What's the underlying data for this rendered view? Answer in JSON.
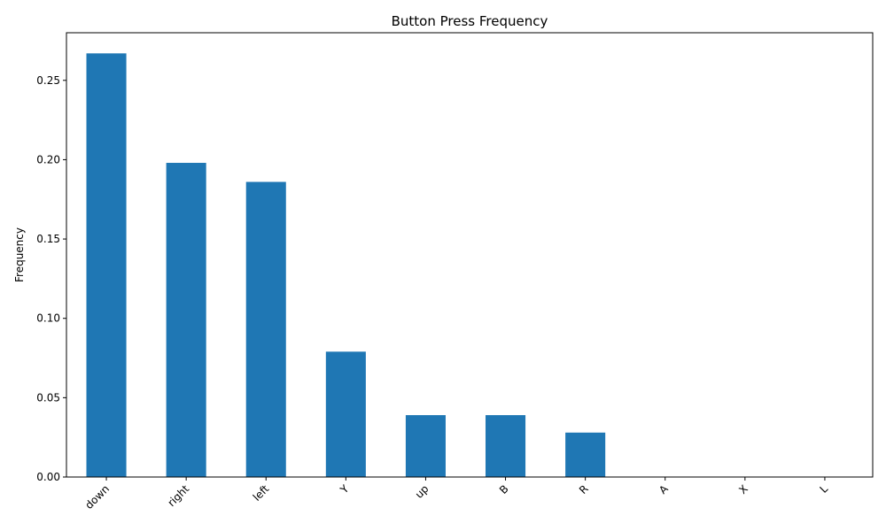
{
  "chart_data": {
    "type": "bar",
    "title": "Button Press Frequency",
    "xlabel": "",
    "ylabel": "Frequency",
    "categories": [
      "down",
      "right",
      "left",
      "Y",
      "up",
      "B",
      "R",
      "A",
      "X",
      "L"
    ],
    "values": [
      0.267,
      0.198,
      0.186,
      0.079,
      0.039,
      0.039,
      0.028,
      0.0,
      0.0,
      0.0
    ],
    "ylim": [
      0,
      0.28
    ],
    "yticks": [
      0.0,
      0.05,
      0.1,
      0.15,
      0.2,
      0.25
    ],
    "ytick_labels": [
      "0.00",
      "0.05",
      "0.10",
      "0.15",
      "0.20",
      "0.25"
    ],
    "grid": false,
    "bar_color": "#1f77b4",
    "x_tick_rotation": 45
  }
}
